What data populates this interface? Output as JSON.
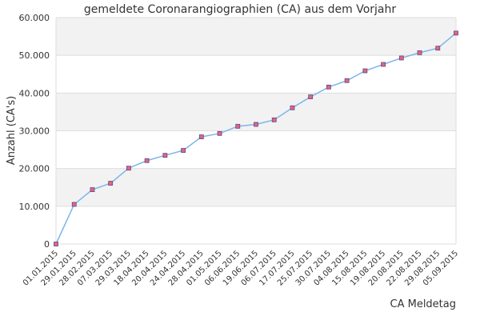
{
  "chart_data": {
    "type": "line",
    "title": "gemeldete Coronarangiographien (CA) aus dem Vorjahr",
    "xlabel": "CA Meldetag",
    "ylabel": "Anzahl (CA's)",
    "ylim": [
      0,
      60000
    ],
    "yticks": [
      0,
      10000,
      20000,
      30000,
      40000,
      50000,
      60000
    ],
    "ytick_labels": [
      "0",
      "10.000",
      "20.000",
      "30.000",
      "40.000",
      "50.000",
      "60.000"
    ],
    "categories": [
      "01.01.2015",
      "29.01.2015",
      "28.02.2015",
      "07.03.2015",
      "29.03.2015",
      "18.04.2015",
      "20.04.2015",
      "24.04.2015",
      "28.04.2015",
      "01.05.2015",
      "06.06.2015",
      "19.06.2015",
      "06.07.2015",
      "17.07.2015",
      "25.07.2015",
      "30.07.2015",
      "04.08.2015",
      "15.08.2015",
      "19.08.2015",
      "20.08.2015",
      "22.08.2015",
      "29.08.2015",
      "05.09.2015"
    ],
    "values": [
      0,
      10500,
      14400,
      16100,
      20100,
      22100,
      23500,
      24800,
      28400,
      29300,
      31200,
      31700,
      32900,
      36100,
      39000,
      41600,
      43300,
      45900,
      47600,
      49300,
      50700,
      51900,
      55900
    ],
    "grid": true,
    "legend": "none",
    "colors": {
      "line": "#7cb5ec",
      "marker_fill": "#e8637a",
      "marker_stroke": "#5a4a8a",
      "band": "#f2f2f2",
      "grid": "#dddddd"
    }
  }
}
